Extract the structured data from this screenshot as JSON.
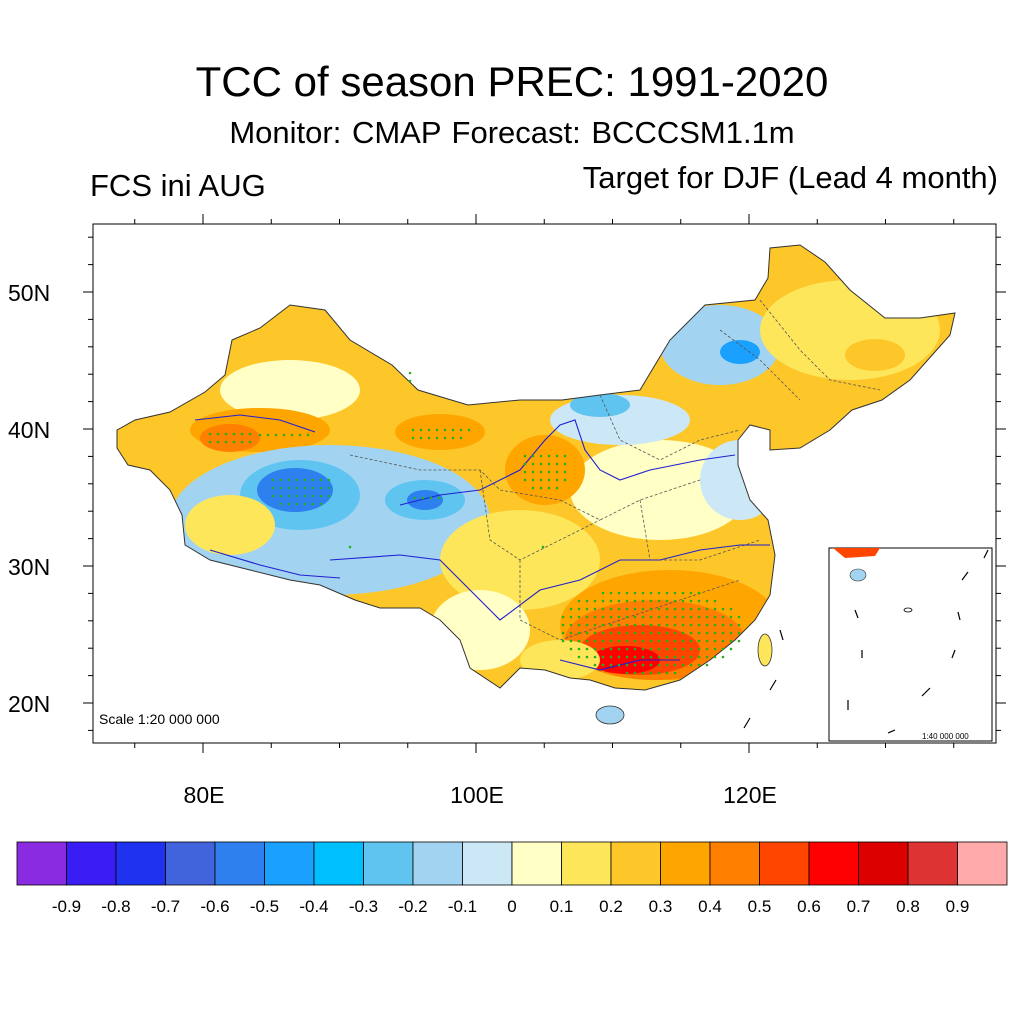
{
  "header": {
    "title": "TCC of season PREC: 1991-2020",
    "subtitle": "Monitor: CMAP   Forecast: BCCCSM1.1m",
    "left_label": "FCS ini AUG",
    "right_label": "Target for DJF (Lead 4 month)"
  },
  "map": {
    "lat_ticks": [
      "50N",
      "40N",
      "30N",
      "20N"
    ],
    "lon_ticks": [
      "80E",
      "100E",
      "120E"
    ],
    "lat_values": [
      50,
      40,
      30,
      20
    ],
    "lon_values": [
      80,
      100,
      120
    ],
    "lat_range": [
      17,
      55
    ],
    "lon_range": [
      72,
      138
    ],
    "scale_text": "Scale 1:20 000 000",
    "inset_scale_text": "1:40 000 000",
    "significance_marker_color": "#20b020",
    "river_color": "#2020d0"
  },
  "colorbar": {
    "labels": [
      "-0.9",
      "-0.8",
      "-0.7",
      "-0.6",
      "-0.5",
      "-0.4",
      "-0.3",
      "-0.2",
      "-0.1",
      "0",
      "0.1",
      "0.2",
      "0.3",
      "0.4",
      "0.5",
      "0.6",
      "0.7",
      "0.8",
      "0.9"
    ],
    "colors": [
      "#8a2be2",
      "#3a1df5",
      "#1e32f0",
      "#4164dc",
      "#2d80ee",
      "#1aa0ff",
      "#00bfff",
      "#60c4f0",
      "#a2d4f2",
      "#cce8f6",
      "#ffffc6",
      "#fde65a",
      "#fdc629",
      "#ffa500",
      "#ff7f00",
      "#ff4500",
      "#ff0000",
      "#dd0000",
      "#dd3333",
      "#ffaaaa"
    ]
  }
}
